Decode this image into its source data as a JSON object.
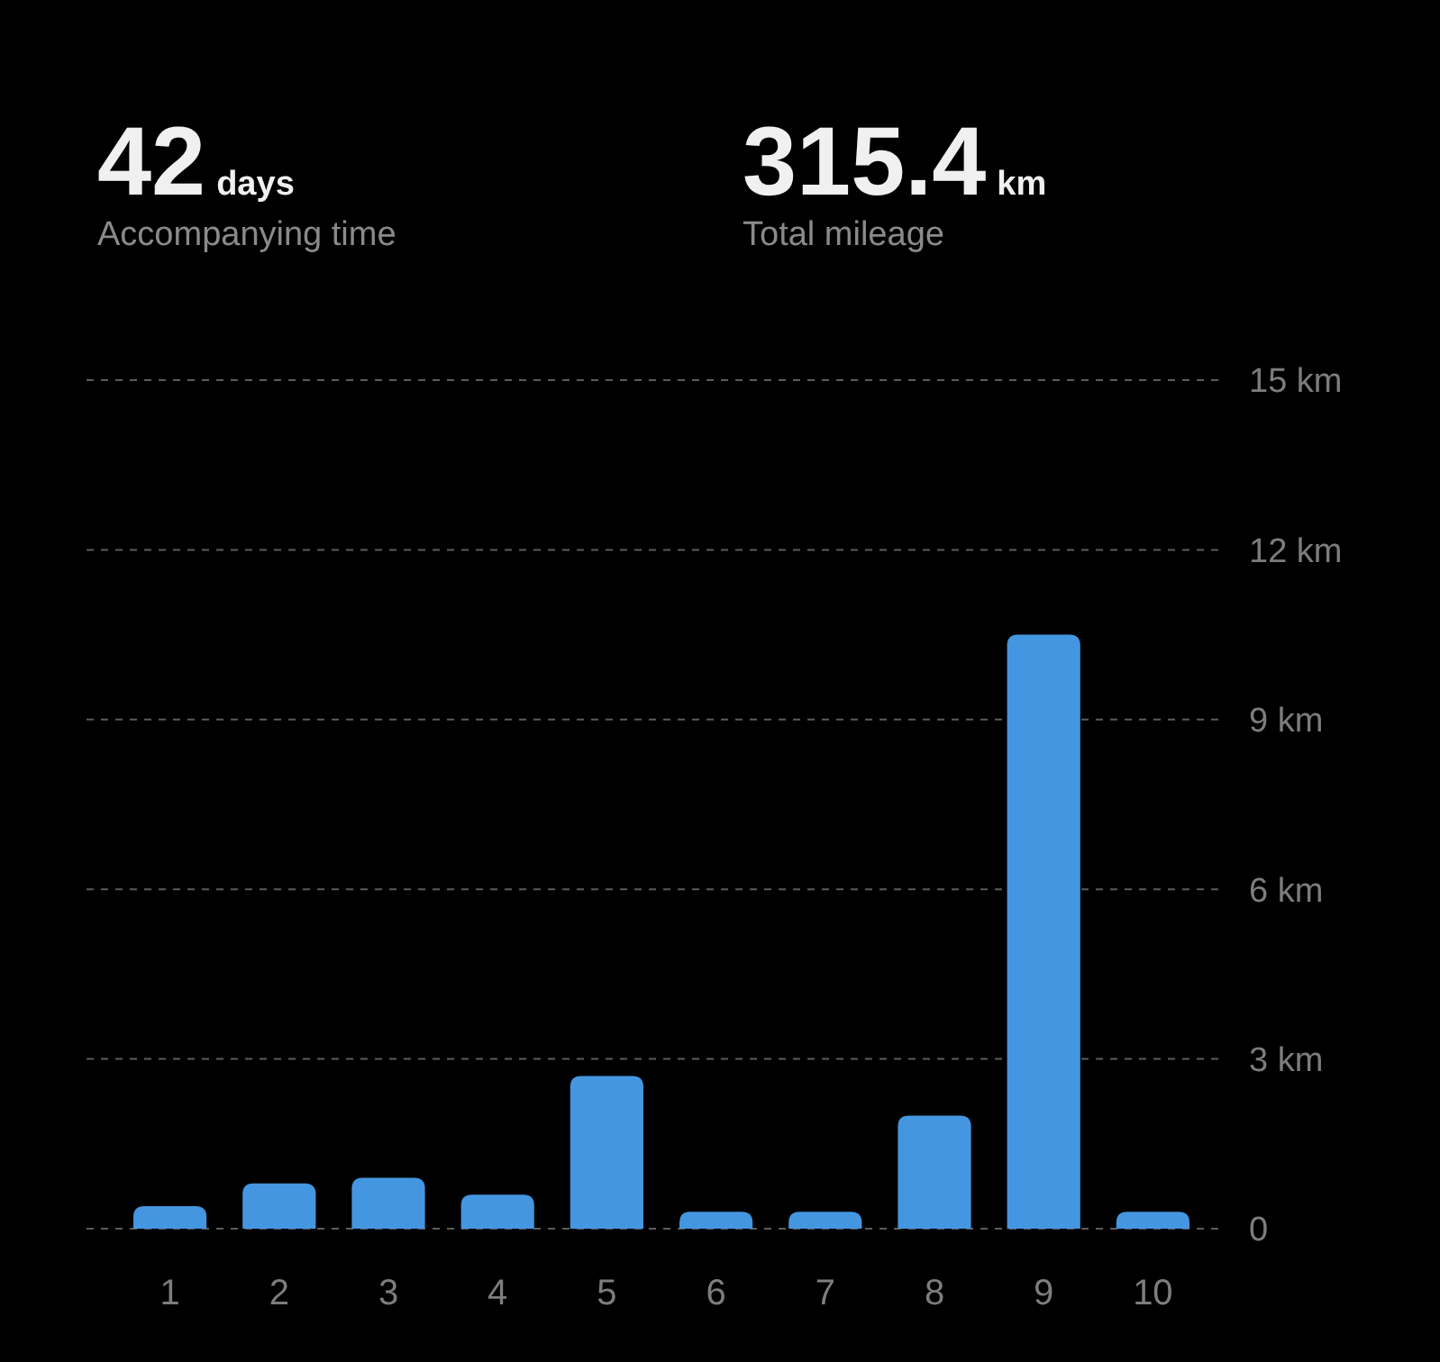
{
  "chart_data": {
    "type": "bar",
    "annotations": [
      "42",
      "days",
      "Accompanying time",
      "315.4",
      "km",
      "Total mileage"
    ],
    "categories": [
      "1",
      "2",
      "3",
      "4",
      "5",
      "6",
      "7",
      "8",
      "9",
      "10"
    ],
    "values": [
      0.4,
      0.8,
      0.9,
      0.6,
      2.7,
      0.3,
      0.3,
      2.0,
      10.5,
      0.3
    ],
    "color": "#4596e0",
    "ylim": [
      0,
      15
    ],
    "yticks": [
      0,
      {
        "value": 3,
        "label": "3 km"
      },
      {
        "value": 6,
        "label": "6 km"
      },
      {
        "value": 9,
        "label": "9 km"
      },
      {
        "value": 12,
        "label": "12 km"
      },
      {
        "value": 15,
        "label": "15 km"
      }
    ],
    "grid": "y"
  }
}
